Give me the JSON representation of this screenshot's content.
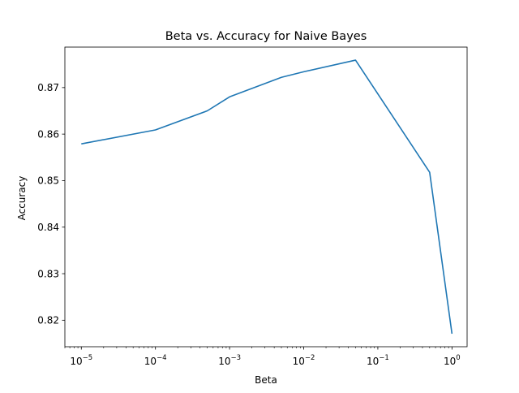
{
  "chart_data": {
    "type": "line",
    "title": "Beta vs. Accuracy for Naive Bayes",
    "xlabel": "Beta",
    "ylabel": "Accuracy",
    "xscale": "log",
    "xlim": [
      6e-06,
      1.6
    ],
    "ylim": [
      0.8143,
      0.8787
    ],
    "x_ticks": [
      {
        "value": 1e-05,
        "base": "10",
        "exp": "−5"
      },
      {
        "value": 0.0001,
        "base": "10",
        "exp": "−4"
      },
      {
        "value": 0.001,
        "base": "10",
        "exp": "−3"
      },
      {
        "value": 0.01,
        "base": "10",
        "exp": "−2"
      },
      {
        "value": 0.1,
        "base": "10",
        "exp": "−1"
      },
      {
        "value": 1,
        "base": "10",
        "exp": "0"
      }
    ],
    "y_ticks": [
      {
        "value": 0.82,
        "label": "0.82"
      },
      {
        "value": 0.83,
        "label": "0.83"
      },
      {
        "value": 0.84,
        "label": "0.84"
      },
      {
        "value": 0.85,
        "label": "0.85"
      },
      {
        "value": 0.86,
        "label": "0.86"
      },
      {
        "value": 0.87,
        "label": "0.87"
      }
    ],
    "grid": false,
    "series": [
      {
        "color": "#1f77b4",
        "x": [
          1e-05,
          0.0001,
          0.0005,
          0.001,
          0.005,
          0.01,
          0.05,
          0.5,
          1
        ],
        "y": [
          0.8579,
          0.8609,
          0.865,
          0.868,
          0.8722,
          0.8734,
          0.8759,
          0.8518,
          0.8171
        ]
      }
    ]
  }
}
